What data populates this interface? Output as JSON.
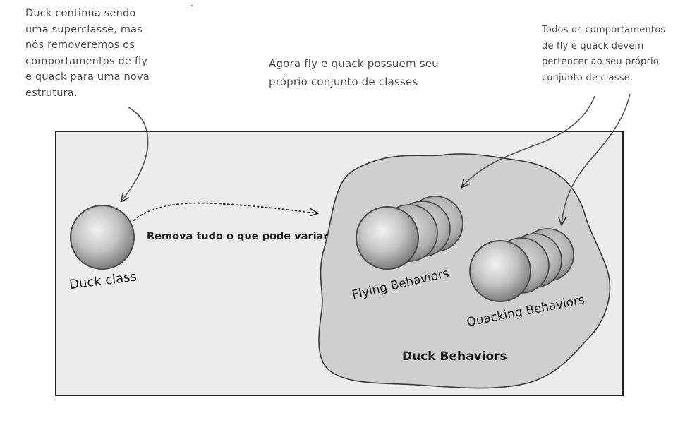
{
  "notes": {
    "left": [
      "Duck continua sendo",
      "uma superclasse, mas",
      "nós removeremos os",
      "comportamentos de fly",
      "e quack para uma nova",
      "estrutura."
    ],
    "center": [
      "Agora fly e quack possuem seu",
      "próprio conjunto de classes"
    ],
    "right": [
      "Todos os comportamentos",
      "de fly e quack devem",
      "pertencer ao seu próprio",
      "conjunto de classe."
    ]
  },
  "diagram": {
    "duck_class_label": "Duck class",
    "arrow_label": "Remova tudo o que pode variar",
    "flying_label": "Flying Behaviors",
    "quacking_label": "Quacking Behaviors",
    "group_label": "Duck Behaviors"
  },
  "colors": {
    "panel_bg": "#ececec",
    "blob_bg": "#cfcfcf",
    "sphere_light": "#eeeeee",
    "sphere_dark": "#8a8a8a"
  }
}
